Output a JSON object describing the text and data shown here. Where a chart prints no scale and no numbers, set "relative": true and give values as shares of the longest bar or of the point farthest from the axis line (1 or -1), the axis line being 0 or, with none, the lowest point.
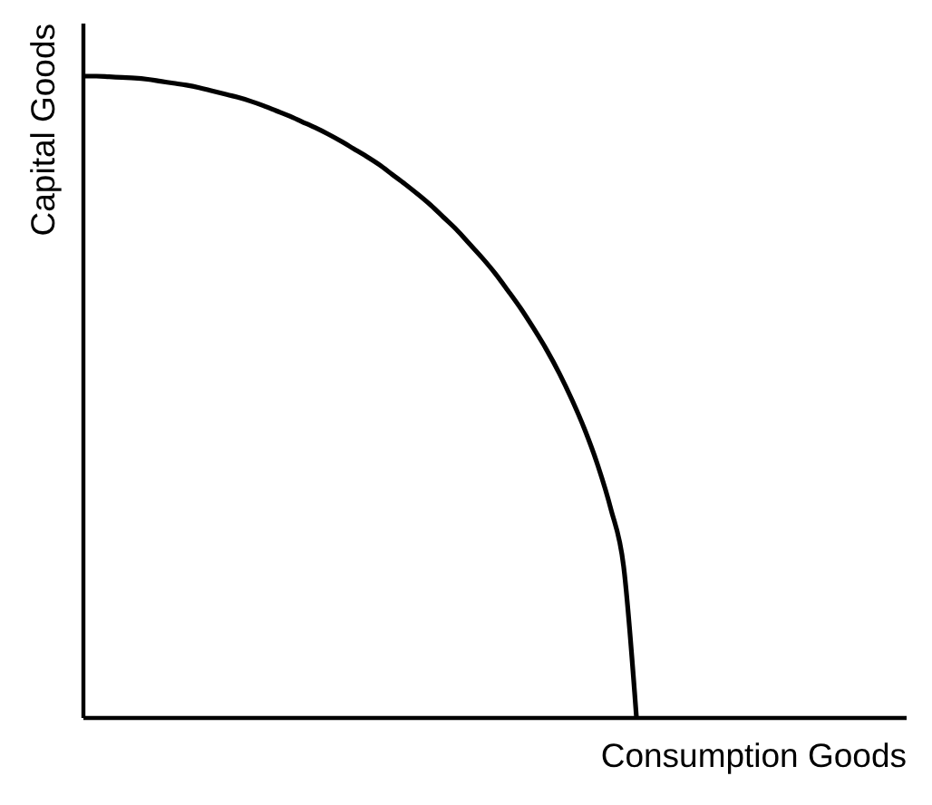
{
  "chart_data": {
    "type": "line",
    "xlabel": "Consumption Goods",
    "ylabel": "Capital Goods",
    "relative": true,
    "color": "#000000",
    "categories": [
      null,
      null,
      null,
      null,
      null,
      null,
      null,
      null,
      null,
      null,
      null,
      null,
      null,
      null,
      null,
      null,
      null,
      null,
      null,
      null,
      null,
      null,
      null,
      null,
      null,
      null,
      null,
      null,
      null,
      null,
      null,
      null,
      null,
      null,
      null,
      null,
      null,
      null,
      null,
      null,
      null,
      null,
      null,
      null,
      null,
      null,
      null,
      null,
      null,
      null,
      null,
      null,
      null,
      null,
      null,
      null,
      null,
      null,
      null,
      null,
      null,
      null,
      null,
      null,
      null
    ],
    "values": [
      1,
      1,
      0.999,
      0.998,
      0.997,
      0.995,
      0.992,
      0.989,
      0.986,
      0.982,
      0.977,
      0.972,
      0.967,
      0.961,
      0.954,
      0.946,
      0.938,
      0.929,
      0.92,
      0.91,
      0.899,
      0.887,
      0.875,
      0.862,
      0.847,
      0.832,
      0.816,
      0.799,
      0.78,
      0.761,
      0.739,
      0.717,
      0.693,
      0.666,
      0.638,
      0.607,
      0.574,
      0.537,
      0.495,
      0.448,
      0.393,
      0.326,
      0.236,
      0,
      null,
      null,
      null,
      null,
      null,
      null,
      null,
      null,
      null,
      null,
      null,
      null,
      null,
      null,
      null,
      null,
      null,
      null,
      null,
      null,
      null
    ]
  }
}
